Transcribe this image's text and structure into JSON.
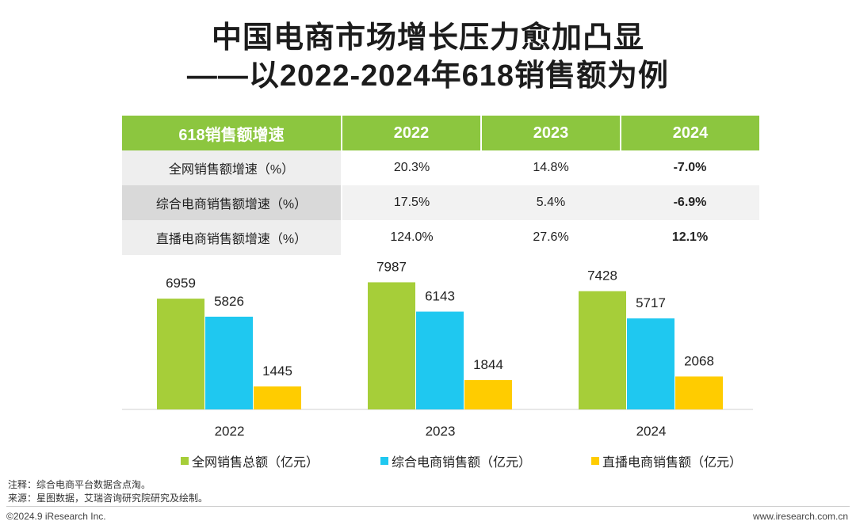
{
  "title": {
    "line1": "中国电商市场增长压力愈加凸显",
    "line2": "——以2022-2024年618销售额为例"
  },
  "table": {
    "header": [
      "618销售额增速",
      "2022",
      "2023",
      "2024"
    ],
    "rows": [
      {
        "label": "全网销售额增速（%）",
        "values": [
          "20.3%",
          "14.8%",
          "-7.0%"
        ]
      },
      {
        "label": "综合电商销售额增速（%）",
        "values": [
          "17.5%",
          "5.4%",
          "-6.9%"
        ]
      },
      {
        "label": "直播电商销售额增速（%）",
        "values": [
          "124.0%",
          "27.6%",
          "12.1%"
        ]
      }
    ]
  },
  "colors": {
    "green": "#a6ce39",
    "blue": "#1fc8f0",
    "yellow": "#ffcc00",
    "header": "#8cc63f"
  },
  "chart_data": {
    "type": "bar",
    "categories": [
      "2022",
      "2023",
      "2024"
    ],
    "series": [
      {
        "name": "全网销售总额（亿元）",
        "values": [
          6959,
          7987,
          7428
        ]
      },
      {
        "name": "综合电商销售额（亿元）",
        "values": [
          5826,
          6143,
          5717
        ]
      },
      {
        "name": "直播电商销售额（亿元）",
        "values": [
          1445,
          1844,
          2068
        ]
      }
    ],
    "ylim": [
      0,
      12000
    ],
    "legend": "bottom",
    "grid": false
  },
  "notes": {
    "note": "注释：综合电商平台数据含点淘。",
    "source": "来源：星图数据，艾瑞咨询研究院研究及绘制。"
  },
  "footer": {
    "copyright": "©2024.9 iResearch Inc.",
    "website": "www.iresearch.com.cn"
  }
}
